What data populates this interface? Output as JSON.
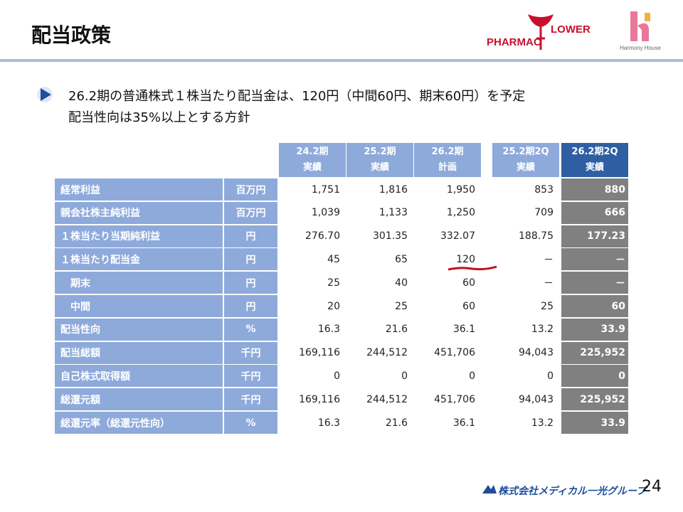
{
  "header": {
    "title": "配当政策",
    "logo_left": [
      "PHARMAC",
      "LOWER"
    ],
    "logo_right": "Harmony House"
  },
  "bullets": [
    "26.2期の普通株式１株当たり配当金は、120円（中間60円、期末60円）を予定",
    "配当性向は35%以上とする方針"
  ],
  "table": {
    "columns": [
      {
        "period": "24.2期",
        "kind": "実績"
      },
      {
        "period": "25.2期",
        "kind": "実績"
      },
      {
        "period": "26.2期",
        "kind": "計画"
      },
      {
        "period": "25.2期2Q",
        "kind": "実績"
      },
      {
        "period": "26.2期2Q",
        "kind": "実績"
      }
    ],
    "rows": [
      {
        "label": "経常利益",
        "unit": "百万円",
        "values": [
          "1,751",
          "1,816",
          "1,950",
          "853",
          "880"
        ]
      },
      {
        "label": "親会社株主純利益",
        "unit": "百万円",
        "values": [
          "1,039",
          "1,133",
          "1,250",
          "709",
          "666"
        ]
      },
      {
        "label": "１株当たり当期純利益",
        "unit": "円",
        "values": [
          "276.70",
          "301.35",
          "332.07",
          "188.75",
          "177.23"
        ]
      },
      {
        "label": "１株当たり配当金",
        "unit": "円",
        "values": [
          "45",
          "65",
          "120",
          "－",
          "－"
        ]
      },
      {
        "label": "　期末",
        "unit": "円",
        "values": [
          "25",
          "40",
          "60",
          "－",
          "－"
        ]
      },
      {
        "label": "　中間",
        "unit": "円",
        "values": [
          "20",
          "25",
          "60",
          "25",
          "60"
        ]
      },
      {
        "label": "配当性向",
        "unit": "%",
        "values": [
          "16.3",
          "21.6",
          "36.1",
          "13.2",
          "33.9"
        ]
      },
      {
        "label": "配当総額",
        "unit": "千円",
        "values": [
          "169,116",
          "244,512",
          "451,706",
          "94,043",
          "225,952"
        ]
      },
      {
        "label": "自己株式取得額",
        "unit": "千円",
        "values": [
          "0",
          "0",
          "0",
          "0",
          "0"
        ]
      },
      {
        "label": "総還元額",
        "unit": "千円",
        "values": [
          "169,116",
          "244,512",
          "451,706",
          "94,043",
          "225,952"
        ]
      },
      {
        "label": "総還元率（総還元性向）",
        "unit": "%",
        "values": [
          "16.3",
          "21.6",
          "36.1",
          "13.2",
          "33.9"
        ]
      }
    ]
  },
  "footer": {
    "company": "株式会社メディカル一光グループ",
    "page": "24"
  }
}
